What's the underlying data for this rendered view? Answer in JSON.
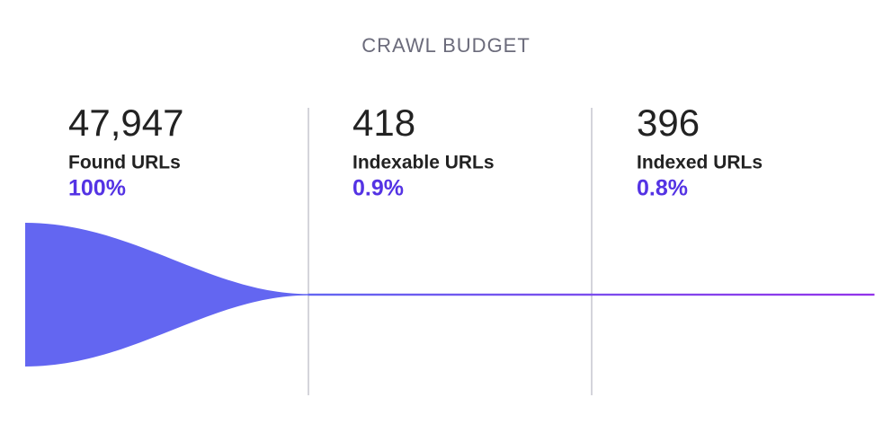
{
  "chart_data": {
    "type": "funnel",
    "title": "CRAWL BUDGET",
    "categories": [
      "Found URLs",
      "Indexable URLs",
      "Indexed URLs"
    ],
    "values": [
      47947,
      418,
      396
    ],
    "value_labels": [
      "47,947",
      "418",
      "396"
    ],
    "percents": [
      100,
      0.9,
      0.8
    ],
    "percent_labels": [
      "100%",
      "0.9%",
      "0.8%"
    ],
    "color": "#6366f1",
    "end_color": "#9333ea"
  }
}
